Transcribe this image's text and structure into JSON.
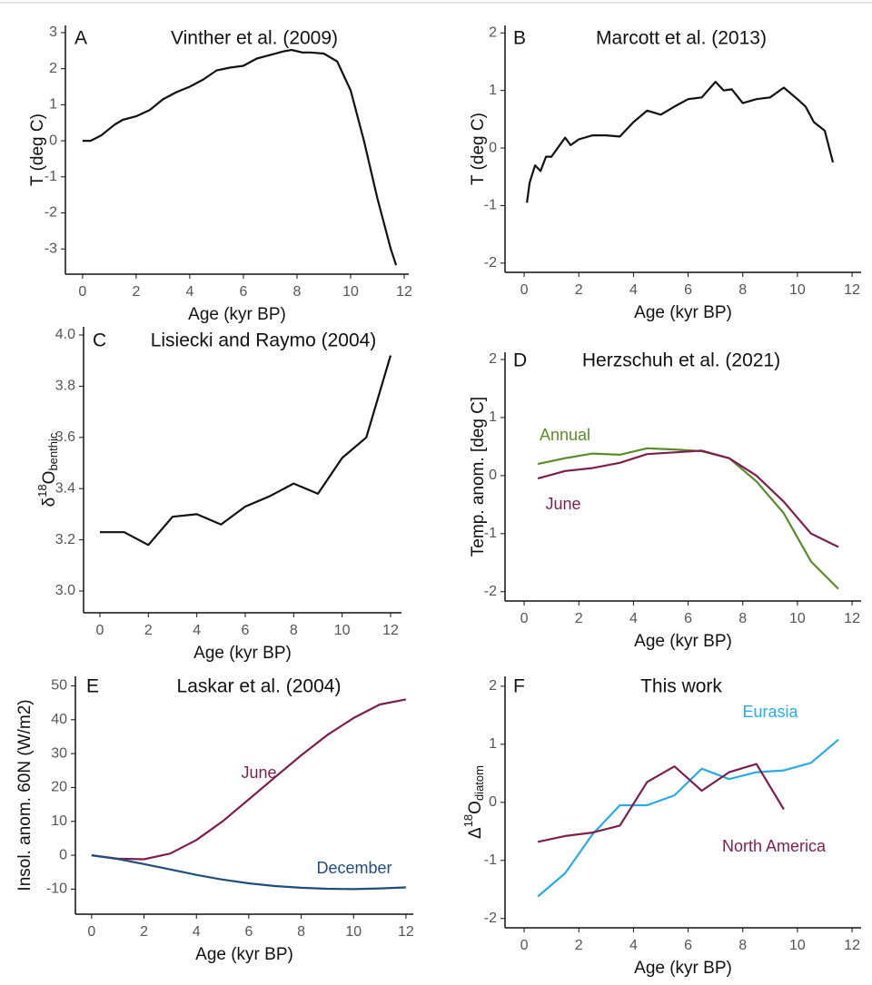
{
  "chart_data": [
    {
      "type": "line",
      "panel_label": "A",
      "title": "Vinther et al. (2009)",
      "xlabel": "Age (kyr BP)",
      "ylabel": "T (deg C)",
      "xlim": [
        -0.64,
        12.17
      ],
      "ylim": [
        -3.7,
        3.2
      ],
      "xticks": [
        0,
        2,
        4,
        6,
        8,
        10,
        12
      ],
      "yticks": [
        -3,
        -2,
        -1,
        0,
        1,
        2,
        3
      ],
      "series": [
        {
          "color": "#111111",
          "x": [
            0,
            0.3,
            0.7,
            1.2,
            1.5,
            2,
            2.5,
            3,
            3.5,
            4,
            4.5,
            5,
            5.5,
            6,
            6.5,
            7,
            7.5,
            7.8,
            8.2,
            8.5,
            9,
            9.5,
            10,
            10.5,
            11,
            11.5,
            11.7
          ],
          "values": [
            0,
            0,
            0.15,
            0.45,
            0.58,
            0.68,
            0.85,
            1.15,
            1.35,
            1.5,
            1.7,
            1.95,
            2.03,
            2.08,
            2.28,
            2.38,
            2.48,
            2.52,
            2.45,
            2.45,
            2.42,
            2.2,
            1.4,
            0,
            -1.6,
            -3.0,
            -3.45
          ]
        }
      ]
    },
    {
      "type": "line",
      "panel_label": "B",
      "title": "Marcott et al. (2013)",
      "xlabel": "Age (kyr BP)",
      "ylabel": "T (deg C)",
      "xlim": [
        -0.7,
        12.33
      ],
      "ylim": [
        -2.16,
        2.13
      ],
      "xticks": [
        0,
        2,
        4,
        6,
        8,
        10,
        12
      ],
      "yticks": [
        -2,
        -1,
        0,
        1,
        2
      ],
      "series": [
        {
          "color": "#111111",
          "x": [
            0.1,
            0.2,
            0.4,
            0.6,
            0.8,
            1.0,
            1.3,
            1.5,
            1.7,
            2.0,
            2.5,
            3.0,
            3.5,
            4.0,
            4.5,
            5.0,
            5.5,
            6.0,
            6.5,
            7.0,
            7.3,
            7.6,
            8.0,
            8.5,
            9.0,
            9.5,
            10.0,
            10.3,
            10.6,
            11.0,
            11.3
          ],
          "values": [
            -0.95,
            -0.6,
            -0.3,
            -0.4,
            -0.15,
            -0.15,
            0.05,
            0.18,
            0.05,
            0.15,
            0.22,
            0.22,
            0.2,
            0.45,
            0.65,
            0.58,
            0.72,
            0.85,
            0.88,
            1.15,
            1.0,
            1.02,
            0.78,
            0.85,
            0.88,
            1.05,
            0.85,
            0.72,
            0.45,
            0.3,
            -0.25
          ]
        }
      ]
    },
    {
      "type": "line",
      "panel_label": "C",
      "title": "Lisiecki and Raymo (2004)",
      "xlabel": "Age (kyr BP)",
      "ylabel": {
        "symbol": "δ",
        "superscript": "18",
        "element": "O",
        "subscript": "benthic"
      },
      "xlim": [
        -0.675,
        12.45
      ],
      "ylim": [
        2.915,
        4.032
      ],
      "xticks": [
        0,
        2,
        4,
        6,
        8,
        10,
        12
      ],
      "yticks": [
        {
          "value": 3,
          "label": "3.0"
        },
        3.2,
        3.4,
        3.6,
        3.8,
        {
          "value": 4,
          "label": "4.0"
        }
      ],
      "series": [
        {
          "color": "#111111",
          "x": [
            0,
            1,
            2,
            3,
            4,
            5,
            6,
            7,
            8,
            9,
            10,
            11,
            12
          ],
          "values": [
            3.23,
            3.23,
            3.18,
            3.29,
            3.3,
            3.26,
            3.33,
            3.37,
            3.42,
            3.38,
            3.52,
            3.6,
            3.92
          ]
        }
      ]
    },
    {
      "type": "line",
      "panel_label": "D",
      "title": "Herzschuh et al. (2021)",
      "xlabel": "Age (kyr BP)",
      "ylabel": "Temp. anom. [deg C]",
      "xlim": [
        -0.7,
        12.33
      ],
      "ylim": [
        -2.16,
        2.125
      ],
      "xticks": [
        0,
        2,
        4,
        6,
        8,
        10,
        12
      ],
      "yticks": [
        -2,
        -1,
        0,
        1,
        2
      ],
      "series": [
        {
          "name": "Annual",
          "color": "#5b8c2a",
          "x": [
            0.5,
            1.5,
            2.5,
            3.5,
            4.5,
            5.5,
            6.5,
            7.5,
            8.5,
            9.5,
            10.5,
            11.5
          ],
          "values": [
            0.2,
            0.3,
            0.38,
            0.36,
            0.47,
            0.45,
            0.42,
            0.3,
            -0.1,
            -0.65,
            -1.48,
            -1.95
          ]
        },
        {
          "name": "June",
          "color": "#7b1f4f",
          "x": [
            0.5,
            1.5,
            2.5,
            3.5,
            4.5,
            5.5,
            6.5,
            7.5,
            8.5,
            9.5,
            10.5,
            11.5
          ],
          "values": [
            -0.05,
            0.08,
            0.13,
            0.22,
            0.37,
            0.4,
            0.43,
            0.3,
            0.0,
            -0.45,
            -1.0,
            -1.23
          ]
        }
      ]
    },
    {
      "type": "line",
      "panel_label": "E",
      "title": "Laskar et al. (2004)",
      "xlabel": "Age (kyr BP)",
      "ylabel": "Insol. anom. 60N (W/m2)",
      "xlim": [
        -0.62,
        12.28
      ],
      "ylim": [
        -17.4,
        52.8
      ],
      "xticks": [
        0,
        2,
        4,
        6,
        8,
        10,
        12
      ],
      "yticks": [
        -10,
        0,
        10,
        20,
        30,
        40,
        50
      ],
      "series": [
        {
          "name": "June",
          "color": "#7b1f4f",
          "x": [
            0,
            1,
            2,
            3,
            4,
            5,
            6,
            7,
            8,
            9,
            10,
            11,
            12
          ],
          "values": [
            0,
            -1,
            -1.2,
            0.5,
            4.5,
            10,
            16.5,
            23,
            29.5,
            35.5,
            40.5,
            44.5,
            46
          ]
        },
        {
          "name": "December",
          "color": "#1f4e79",
          "x": [
            0,
            1,
            2,
            3,
            4,
            5,
            6,
            7,
            8,
            9,
            10,
            11,
            12
          ],
          "values": [
            0,
            -1.1,
            -2.6,
            -4.2,
            -5.8,
            -7.2,
            -8.3,
            -9.1,
            -9.6,
            -9.9,
            -10,
            -9.8,
            -9.5
          ]
        }
      ]
    },
    {
      "type": "line",
      "panel_label": "F",
      "title": "This work",
      "xlabel": "Age (kyr BP)",
      "ylabel": {
        "symbol": "Δ",
        "superscript": "18",
        "element": "O",
        "subscript": "diatom"
      },
      "xlim": [
        -0.7,
        12.33
      ],
      "ylim": [
        -2.16,
        2.17
      ],
      "xticks": [
        0,
        2,
        4,
        6,
        8,
        10,
        12
      ],
      "yticks": [
        -2,
        -1,
        0,
        1,
        2
      ],
      "series": [
        {
          "name": "Eurasia",
          "color": "#29abe2",
          "x": [
            0.5,
            1.5,
            2.5,
            3.5,
            4.5,
            5.5,
            6.5,
            7.5,
            8.5,
            9.5,
            10.5,
            11.5
          ],
          "values": [
            -1.62,
            -1.22,
            -0.55,
            -0.05,
            -0.05,
            0.12,
            0.58,
            0.4,
            0.52,
            0.55,
            0.68,
            1.08
          ]
        },
        {
          "name": "North America",
          "color": "#7b1f4f",
          "x": [
            0.5,
            1.5,
            2.5,
            3.5,
            4.5,
            5.5,
            6.5,
            7.5,
            8.5,
            9.5
          ],
          "values": [
            -0.68,
            -0.58,
            -0.52,
            -0.4,
            0.35,
            0.62,
            0.2,
            0.52,
            0.66,
            -0.12
          ]
        }
      ]
    }
  ]
}
